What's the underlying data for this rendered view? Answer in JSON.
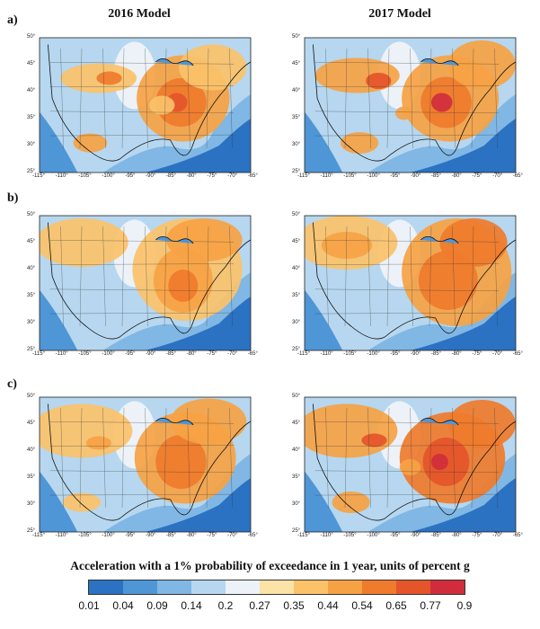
{
  "titles": {
    "left": "2016 Model",
    "right": "2017 Model"
  },
  "row_labels": [
    "a)",
    "b)",
    "c)"
  ],
  "lat_labels": [
    "50°",
    "45°",
    "40°",
    "35°",
    "30°",
    "25°"
  ],
  "lon_labels": [
    "-115°",
    "-110°",
    "-105°",
    "-100°",
    "-95°",
    "-90°",
    "-85°",
    "-80°",
    "-75°",
    "-70°",
    "-65°"
  ],
  "caption": "Acceleration with a 1% probability of exceedance in 1 year, units of percent g",
  "colorbar": {
    "ticks": [
      "0.01",
      "0.04",
      "0.09",
      "0.14",
      "0.2",
      "0.27",
      "0.35",
      "0.44",
      "0.54",
      "0.65",
      "0.77",
      "0.9"
    ],
    "colors": [
      "#2b72c2",
      "#4f96d6",
      "#80b7e4",
      "#b6d7ef",
      "#ecf2f8",
      "#fbe3a8",
      "#fbc26a",
      "#f6a244",
      "#ef7b2c",
      "#e4552a",
      "#d02c3c"
    ]
  }
}
